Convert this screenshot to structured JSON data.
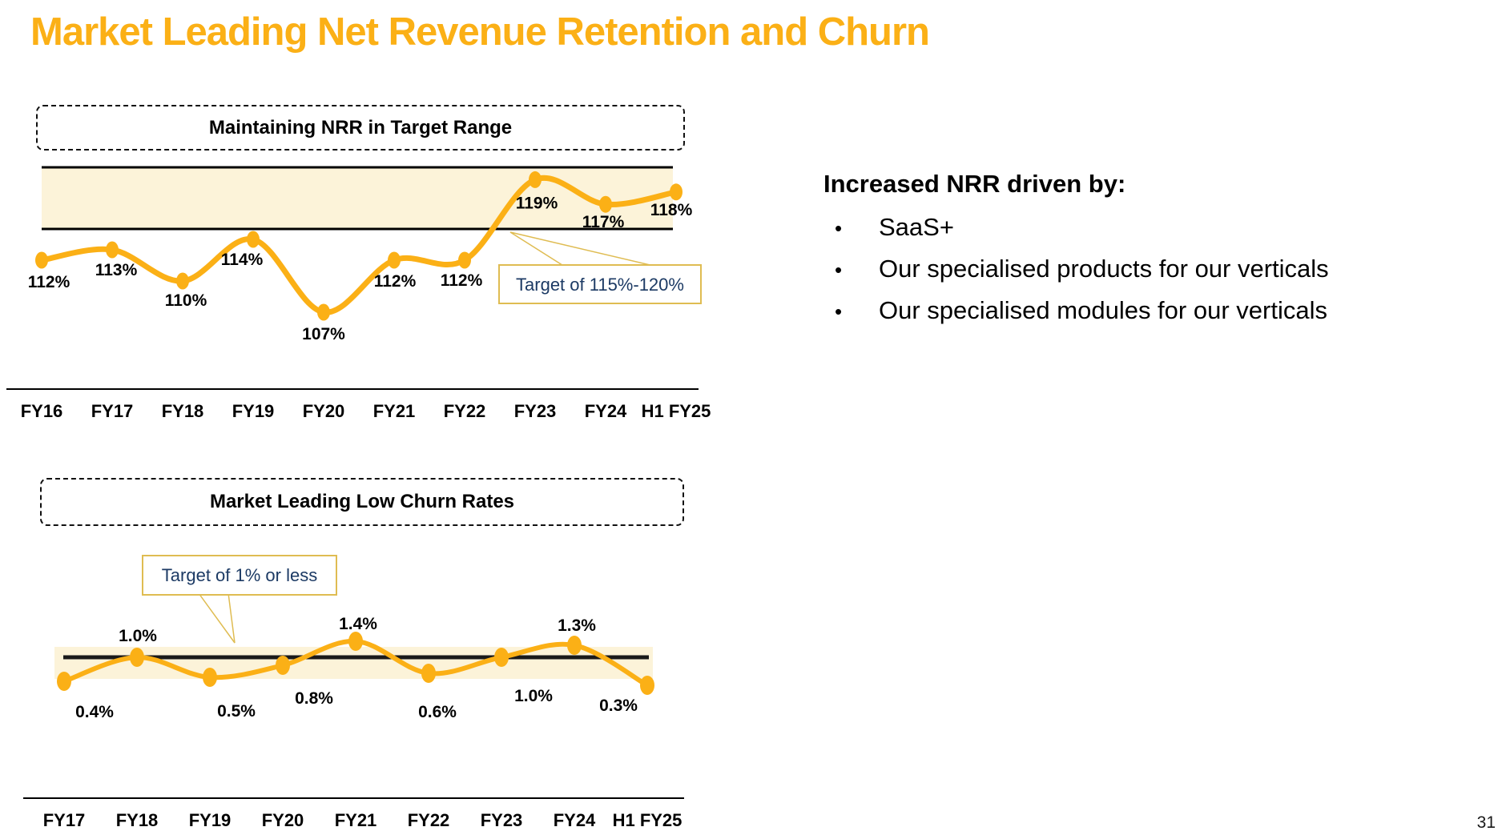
{
  "slide": {
    "title": "Market Leading Net Revenue Retention and Churn",
    "page_number": "31"
  },
  "colors": {
    "accent_gold": "#FBB016",
    "band_cream": "#FCF3D9",
    "callout_border": "#DFBC52",
    "callout_text_navy": "#1C3A64",
    "text_black": "#000000"
  },
  "insights": {
    "heading": "Increased NRR driven by:",
    "bullets": [
      "SaaS+",
      "Our specialised products for our verticals",
      "Our specialised modules for our verticals"
    ]
  },
  "chart_data": [
    {
      "id": "nrr",
      "type": "line",
      "title": "Maintaining NRR in Target Range",
      "categories": [
        "FY16",
        "FY17",
        "FY18",
        "FY19",
        "FY20",
        "FY21",
        "FY22",
        "FY23",
        "FY24",
        "H1 FY25"
      ],
      "values": [
        112,
        113,
        110,
        114,
        107,
        112,
        112,
        119,
        117,
        118
      ],
      "point_labels": [
        "112%",
        "113%",
        "110%",
        "114%",
        "107%",
        "112%",
        "112%",
        "119%",
        "117%",
        "118%"
      ],
      "unit": "%",
      "target_band": {
        "low": 115,
        "high": 120,
        "label": "Target of 115%-120%"
      },
      "grid": false,
      "legend": "none"
    },
    {
      "id": "churn",
      "type": "line",
      "title": "Market Leading Low Churn Rates",
      "categories": [
        "FY17",
        "FY18",
        "FY19",
        "FY20",
        "FY21",
        "FY22",
        "FY23",
        "FY24",
        "H1 FY25"
      ],
      "values": [
        0.4,
        1.0,
        0.5,
        0.8,
        1.4,
        0.6,
        1.0,
        1.3,
        0.3
      ],
      "point_labels": [
        "0.4%",
        "1.0%",
        "0.5%",
        "0.8%",
        "1.4%",
        "0.6%",
        "1.0%",
        "1.3%",
        "0.3%"
      ],
      "unit": "%",
      "target_line": {
        "value": 1.0,
        "label": "Target of 1% or less"
      },
      "grid": false,
      "legend": "none"
    }
  ]
}
